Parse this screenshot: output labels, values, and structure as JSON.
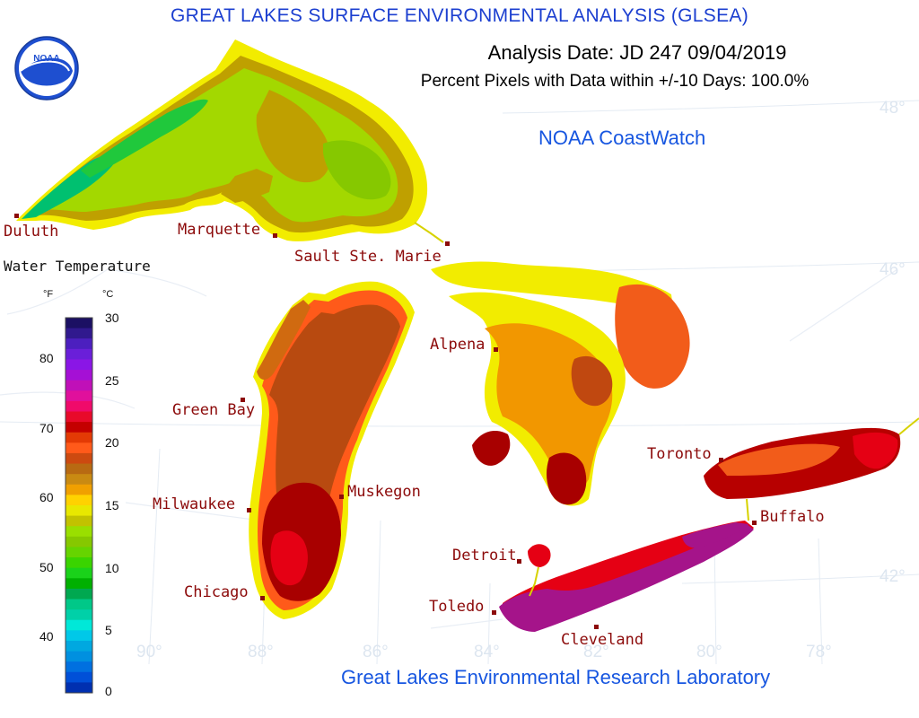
{
  "header": {
    "title": "GREAT LAKES SURFACE ENVIRONMENTAL ANALYSIS (GLSEA)",
    "analysis_date": "Analysis Date:  JD 247 09/04/2019",
    "percent_pixels": "Percent Pixels with Data within +/-10 Days: 100.0%",
    "coastwatch": "NOAA CoastWatch",
    "footer": "Great Lakes Environmental Research Laboratory"
  },
  "logo": {
    "icon": "noaa-logo",
    "text": "NOAA"
  },
  "legend": {
    "title": "Water Temperature",
    "unit_f": "°F",
    "unit_c": "°C",
    "f_ticks": [
      "80",
      "70",
      "60",
      "50",
      "40"
    ],
    "c_ticks": [
      "30",
      "25",
      "20",
      "15",
      "10",
      "5",
      "0"
    ],
    "colors": [
      "#1b1063",
      "#30198e",
      "#4c1fbf",
      "#6a1fd9",
      "#8a16e6",
      "#a510d5",
      "#c010b8",
      "#e0109c",
      "#f00a6a",
      "#e80a2a",
      "#c40000",
      "#e33a05",
      "#ff5a1a",
      "#cc4a10",
      "#b86a12",
      "#c98a12",
      "#f0a000",
      "#ffd200",
      "#e8e800",
      "#c2c200",
      "#9adf00",
      "#86c800",
      "#66d400",
      "#3ad400",
      "#1ad21a",
      "#00b000",
      "#00a850",
      "#00c888",
      "#00d0a8",
      "#00e8d8",
      "#00c8e8",
      "#00a8e0",
      "#0090e0",
      "#0070e0",
      "#0050d8",
      "#0030b0"
    ]
  },
  "cities": {
    "duluth": "Duluth",
    "marquette": "Marquette",
    "sault": "Sault Ste. Marie",
    "alpena": "Alpena",
    "greenbay": "Green Bay",
    "milwaukee": "Milwaukee",
    "muskegon": "Muskegon",
    "chicago": "Chicago",
    "detroit": "Detroit",
    "toledo": "Toledo",
    "cleveland": "Cleveland",
    "toronto": "Toronto",
    "buffalo": "Buffalo"
  },
  "graticule": {
    "lat48": "48°",
    "lat46": "46°",
    "lat42": "42°",
    "lon90": "90°",
    "lon88": "88°",
    "lon86": "86°",
    "lon84": "84°",
    "lon82": "82°",
    "lon80": "80°",
    "lon78": "78°"
  },
  "colors": {
    "title": "#1c3fd0",
    "coastwatch": "#1756e0",
    "city_label": "#8c0a0a",
    "graticule": "#dde6f0",
    "superior_main": "#a3d800",
    "superior_warm": "#bfa000",
    "superior_cold": "#00c070",
    "michigan_main": "#b84a10",
    "michigan_south": "#a80000",
    "huron_main": "#f29700",
    "erie_main": "#e50014",
    "erie_warm": "#a5148a",
    "ontario_main": "#b70000"
  }
}
